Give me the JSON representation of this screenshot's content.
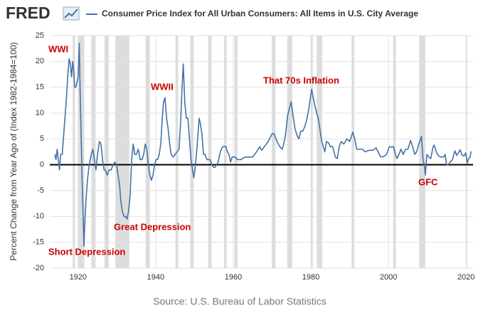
{
  "brand": "FRED",
  "source": "Source: U.S. Bureau of Labor Statistics",
  "chart_data": {
    "type": "line",
    "y_label": "Percent Change from Year Ago of (Index 1982-1984=100)",
    "xlim": [
      1912.7,
      2021.8
    ],
    "xticks": [
      1920,
      1940,
      1960,
      1980,
      2000,
      2020
    ],
    "ylim": [
      -20,
      25
    ],
    "yticks": [
      -20,
      -15,
      -10,
      -5,
      0,
      5,
      10,
      15,
      20,
      25
    ],
    "grid": true,
    "reference_line": 0,
    "recession_color": "#dddddd",
    "recessions": [
      [
        1918.6,
        1919.2
      ],
      [
        1920.0,
        1921.6
      ],
      [
        1923.4,
        1924.5
      ],
      [
        1926.8,
        1927.9
      ],
      [
        1929.6,
        1933.2
      ],
      [
        1937.4,
        1938.5
      ],
      [
        1945.1,
        1945.8
      ],
      [
        1948.9,
        1949.8
      ],
      [
        1953.5,
        1954.4
      ],
      [
        1957.6,
        1958.3
      ],
      [
        1960.3,
        1961.1
      ],
      [
        1969.9,
        1970.9
      ],
      [
        1973.9,
        1975.2
      ],
      [
        1980.0,
        1980.5
      ],
      [
        1981.5,
        1982.9
      ],
      [
        1990.5,
        1991.2
      ],
      [
        2001.2,
        2001.9
      ],
      [
        2007.9,
        2009.5
      ],
      [
        2020.1,
        2020.3
      ]
    ],
    "annotations": [
      "WWI",
      "Great Depression",
      "Short Depression",
      "WWII",
      "That 70s Inflation",
      "GFC"
    ],
    "series": [
      {
        "name": "Consumer Price Index for All Urban Consumers: All Items in U.S. City Average",
        "color": "#4572a7",
        "x": [
          1914.0,
          1914.3,
          1914.6,
          1914.9,
          1915.2,
          1915.5,
          1915.9,
          1916.3,
          1916.7,
          1917.0,
          1917.4,
          1917.7,
          1918.0,
          1918.3,
          1918.6,
          1918.9,
          1919.1,
          1919.4,
          1919.7,
          1920.0,
          1920.3,
          1920.5,
          1920.8,
          1921.0,
          1921.3,
          1921.5,
          1921.8,
          1922.1,
          1922.4,
          1922.7,
          1923.0,
          1923.4,
          1923.8,
          1924.2,
          1924.6,
          1925.0,
          1925.5,
          1925.9,
          1926.3,
          1926.7,
          1927.0,
          1927.5,
          1928.0,
          1928.5,
          1929.0,
          1929.5,
          1929.9,
          1930.3,
          1930.7,
          1931.0,
          1931.4,
          1931.8,
          1932.2,
          1932.6,
          1933.0,
          1933.4,
          1933.8,
          1934.2,
          1934.6,
          1935.0,
          1935.5,
          1936.0,
          1936.5,
          1936.9,
          1937.3,
          1937.7,
          1938.1,
          1938.5,
          1938.9,
          1939.3,
          1939.7,
          1940.1,
          1940.5,
          1940.9,
          1941.3,
          1941.7,
          1942.0,
          1942.4,
          1942.8,
          1943.2,
          1943.6,
          1944.0,
          1944.5,
          1945.0,
          1945.5,
          1946.0,
          1946.4,
          1946.8,
          1947.1,
          1947.5,
          1947.9,
          1948.3,
          1948.7,
          1949.1,
          1949.5,
          1949.8,
          1950.1,
          1950.5,
          1950.9,
          1951.2,
          1951.5,
          1951.9,
          1952.3,
          1952.7,
          1953.2,
          1953.6,
          1954.0,
          1954.5,
          1954.9,
          1955.3,
          1955.7,
          1956.1,
          1956.5,
          1956.9,
          1957.3,
          1957.7,
          1958.1,
          1958.5,
          1958.9,
          1959.3,
          1959.7,
          1960.1,
          1960.5,
          1961.0,
          1962.0,
          1963.0,
          1964.0,
          1965.0,
          1966.0,
          1966.8,
          1967.3,
          1968.0,
          1969.0,
          1970.0,
          1970.5,
          1971.0,
          1971.6,
          1972.0,
          1972.6,
          1973.0,
          1973.5,
          1974.0,
          1974.5,
          1974.9,
          1975.4,
          1975.9,
          1976.5,
          1976.9,
          1977.4,
          1977.9,
          1978.5,
          1979.0,
          1979.5,
          1980.2,
          1980.6,
          1981.0,
          1981.5,
          1981.9,
          1982.3,
          1982.8,
          1983.2,
          1983.6,
          1984.0,
          1984.6,
          1985.0,
          1985.6,
          1986.3,
          1986.8,
          1987.3,
          1987.8,
          1988.5,
          1989.3,
          1990.0,
          1990.8,
          1991.3,
          1991.8,
          1992.5,
          1993.3,
          1994.0,
          1995.0,
          1996.0,
          1996.8,
          1997.5,
          1998.0,
          1998.8,
          1999.5,
          2000.2,
          2000.8,
          2001.3,
          2001.8,
          2002.2,
          2002.8,
          2003.2,
          2003.8,
          2004.4,
          2005.0,
          2005.7,
          2006.2,
          2006.8,
          2007.3,
          2007.9,
          2008.5,
          2008.9,
          2009.3,
          2009.5,
          2009.9,
          2010.4,
          2010.9,
          2011.5,
          2011.8,
          2012.3,
          2012.9,
          2013.5,
          2014.2,
          2014.6,
          2015.0,
          2015.5,
          2015.9,
          2016.5,
          2017.1,
          2017.6,
          2018.5,
          2018.9,
          2019.5,
          2019.9,
          2020.3,
          2020.7,
          2021.0,
          2021.3
        ],
        "values": [
          2.0,
          1.0,
          3.0,
          1.0,
          -1.0,
          2.0,
          2.0,
          6,
          10,
          13,
          18,
          20.5,
          19.5,
          17,
          20,
          18,
          15,
          15,
          16,
          17,
          23.5,
          15,
          5,
          -2,
          -10,
          -15.8,
          -10,
          -6,
          -3,
          -1,
          0.5,
          2,
          3,
          1,
          -1,
          2,
          4.5,
          4,
          1,
          -1,
          -1,
          -2,
          -1,
          -1,
          0,
          0.5,
          0,
          -2,
          -4,
          -7,
          -9,
          -10,
          -10,
          -10.5,
          -9,
          -6,
          1,
          4,
          2,
          2,
          3,
          1,
          1,
          2,
          4,
          3,
          0,
          -2,
          -3,
          -2,
          0,
          1,
          1,
          2,
          4,
          9,
          12,
          13,
          9,
          7,
          4,
          2,
          1.5,
          2,
          2.5,
          3,
          8,
          15,
          19.5,
          12,
          9,
          9,
          5,
          1,
          -1,
          -2.5,
          -1,
          2,
          6,
          9,
          8,
          6,
          2,
          2,
          1,
          1,
          1,
          0,
          -0.5,
          -0.5,
          0,
          0.5,
          2,
          3,
          3.5,
          3.5,
          3.5,
          2.5,
          2,
          0.5,
          1.5,
          1.5,
          1.5,
          1,
          1,
          1.5,
          1.5,
          1.5,
          2.5,
          3.5,
          2.8,
          3.5,
          4.5,
          6,
          6,
          5,
          4,
          3.5,
          3,
          4,
          6,
          9.5,
          11,
          12.2,
          9.5,
          7,
          5.5,
          5,
          6.5,
          6.5,
          7.5,
          9,
          11,
          14.6,
          13,
          11.5,
          10,
          9,
          7,
          4.5,
          3.5,
          2.5,
          4.5,
          4.2,
          3.5,
          3.5,
          1.5,
          1.2,
          3.5,
          4.5,
          4,
          5,
          4.5,
          6.3,
          5,
          3,
          3,
          3,
          2.5,
          2.8,
          2.8,
          3.3,
          2.2,
          1.5,
          1.6,
          2,
          3.5,
          3.4,
          3.5,
          2,
          1.2,
          2.2,
          3,
          2,
          3,
          3,
          4.7,
          3.5,
          2,
          2.6,
          4.2,
          5.5,
          1,
          -0.5,
          -2,
          2,
          1.5,
          1.2,
          3.5,
          3.8,
          2.5,
          1.7,
          1.5,
          1.5,
          2,
          -0.1,
          0.1,
          0.5,
          1,
          2.7,
          1.8,
          2.9,
          1.9,
          1.7,
          2.3,
          0.3,
          1.3,
          1.4,
          2.6
        ]
      }
    ]
  }
}
